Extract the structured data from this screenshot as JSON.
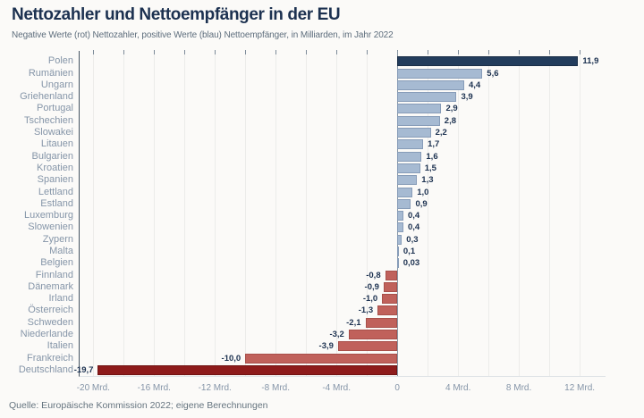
{
  "header": {
    "title": "Nettozahler und Nettoempfänger in der EU",
    "subtitle": "Negative Werte (rot) Nettozahler, positive Werte (blau) Nettoempfänger, in Milliarden, im Jahr 2022"
  },
  "footer": {
    "source": "Quelle: Europäische Kommission 2022; eigene Berechnungen"
  },
  "chart_data": {
    "type": "bar",
    "orientation": "horizontal",
    "title": "Nettozahler und Nettoempfänger in der EU",
    "subtitle": "Negative Werte (rot) Nettozahler, positive Werte (blau) Nettoempfänger, in Milliarden, im Jahr 2022",
    "unit": "Mrd.",
    "xlim": [
      -20.9,
      13.7
    ],
    "gridline_step": 2,
    "grid": true,
    "x_ticks": [
      {
        "value": -20,
        "label": "-20 Mrd."
      },
      {
        "value": -16,
        "label": "-16 Mrd."
      },
      {
        "value": -12,
        "label": "-12 Mrd."
      },
      {
        "value": -8,
        "label": "-8 Mrd."
      },
      {
        "value": -4,
        "label": "-4 Mrd."
      },
      {
        "value": 0,
        "label": "0"
      },
      {
        "value": 4,
        "label": "4 Mrd."
      },
      {
        "value": 8,
        "label": "8 Mrd."
      },
      {
        "value": 12,
        "label": "12 Mrd."
      }
    ],
    "colors": {
      "positive_highlight": {
        "fill": "#223c5c",
        "border": "#1a2e47"
      },
      "positive": {
        "fill": "#a6bad2",
        "border": "#879cb8"
      },
      "negative": {
        "fill": "#c0615b",
        "border": "#a84f4a"
      },
      "negative_highlight": {
        "fill": "#8e1b1b",
        "border": "#701313"
      }
    },
    "bars": [
      {
        "country": "Polen",
        "value": 11.9,
        "label": "11,9",
        "color": "positive_highlight"
      },
      {
        "country": "Rumänien",
        "value": 5.6,
        "label": "5,6",
        "color": "positive"
      },
      {
        "country": "Ungarn",
        "value": 4.4,
        "label": "4,4",
        "color": "positive"
      },
      {
        "country": "Griehenland",
        "value": 3.9,
        "label": "3,9",
        "color": "positive"
      },
      {
        "country": "Portugal",
        "value": 2.9,
        "label": "2,9",
        "color": "positive"
      },
      {
        "country": "Tschechien",
        "value": 2.8,
        "label": "2,8",
        "color": "positive"
      },
      {
        "country": "Slowakei",
        "value": 2.2,
        "label": "2,2",
        "color": "positive"
      },
      {
        "country": "Litauen",
        "value": 1.7,
        "label": "1,7",
        "color": "positive"
      },
      {
        "country": "Bulgarien",
        "value": 1.6,
        "label": "1,6",
        "color": "positive"
      },
      {
        "country": "Kroatien",
        "value": 1.5,
        "label": "1,5",
        "color": "positive"
      },
      {
        "country": "Spanien",
        "value": 1.3,
        "label": "1,3",
        "color": "positive"
      },
      {
        "country": "Lettland",
        "value": 1.0,
        "label": "1,0",
        "color": "positive"
      },
      {
        "country": "Estland",
        "value": 0.9,
        "label": "0,9",
        "color": "positive"
      },
      {
        "country": "Luxemburg",
        "value": 0.4,
        "label": "0,4",
        "color": "positive"
      },
      {
        "country": "Slowenien",
        "value": 0.4,
        "label": "0,4",
        "color": "positive"
      },
      {
        "country": "Zypern",
        "value": 0.3,
        "label": "0,3",
        "color": "positive"
      },
      {
        "country": "Malta",
        "value": 0.1,
        "label": "0,1",
        "color": "positive"
      },
      {
        "country": "Belgien",
        "value": 0.03,
        "label": "0,03",
        "color": "positive"
      },
      {
        "country": "Finnland",
        "value": -0.8,
        "label": "-0,8",
        "color": "negative"
      },
      {
        "country": "Dänemark",
        "value": -0.9,
        "label": "-0,9",
        "color": "negative"
      },
      {
        "country": "Irland",
        "value": -1.0,
        "label": "-1,0",
        "color": "negative"
      },
      {
        "country": "Österreich",
        "value": -1.3,
        "label": "-1,3",
        "color": "negative"
      },
      {
        "country": "Schweden",
        "value": -2.1,
        "label": "-2,1",
        "color": "negative"
      },
      {
        "country": "Niederlande",
        "value": -3.2,
        "label": "-3,2",
        "color": "negative"
      },
      {
        "country": "Italien",
        "value": -3.9,
        "label": "-3,9",
        "color": "negative"
      },
      {
        "country": "Frankreich",
        "value": -10.0,
        "label": "-10,0",
        "color": "negative"
      },
      {
        "country": "Deutschland",
        "value": -19.7,
        "label": "-19,7",
        "color": "negative_highlight"
      }
    ]
  }
}
